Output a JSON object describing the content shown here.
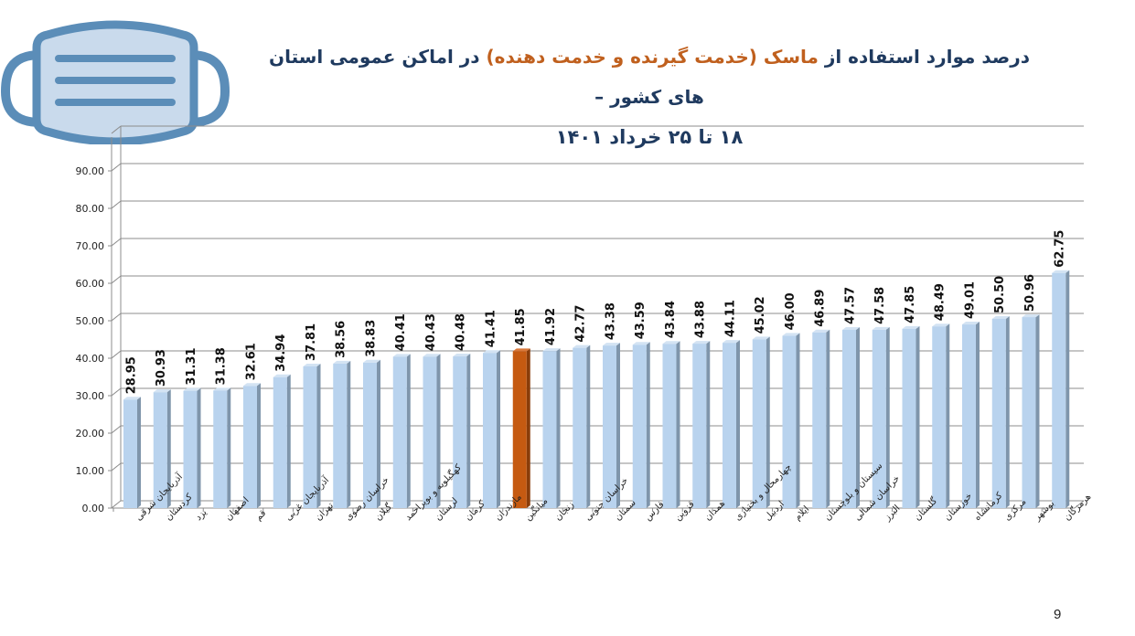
{
  "slide": {
    "title_part1": "درصد موارد استفاده از ",
    "title_part2": "ماسک (خدمت گیرنده و خدمت دهنده)",
    "title_part3": " در اماکن عمومی استان های کشور –",
    "title_line2": "۱۸ تا ۲۵ خرداد ۱۴۰۱",
    "page_number": "9",
    "icon": "face-mask-icon",
    "colors": {
      "title": "#1F3A5F",
      "title_accent": "#C0601E",
      "bar": "#B9D3EE",
      "bar_side": "#7F95AB",
      "highlight_bar": "#C55A11",
      "highlight_side": "#8A3D0A",
      "mask_stroke": "#5B8DB8",
      "mask_fill": "#C9DAEC"
    }
  },
  "chart_data": {
    "type": "bar",
    "title": "درصد موارد استفاده از ماسک (خدمت گیرنده و خدمت دهنده) در اماکن عمومی استان های کشور – ۱۸ تا ۲۵ خرداد ۱۴۰۱",
    "xlabel": "",
    "ylabel": "",
    "ylim": [
      0,
      100
    ],
    "yticks": [
      "0.00",
      "10.00",
      "20.00",
      "30.00",
      "40.00",
      "50.00",
      "60.00",
      "70.00",
      "80.00",
      "90.00"
    ],
    "grid": true,
    "legend": "none",
    "style": "3d-column",
    "highlighted_category": "میانگین",
    "categories": [
      "آذربایجان شرقی",
      "کردستان",
      "یزد",
      "اصفهان",
      "قم",
      "آذربایجان غربی",
      "تهران",
      "خراسان رضوی",
      "گیلان",
      "کهگیلویه و بویراحمد",
      "لرستان",
      "کرمان",
      "مازندران",
      "میانگین",
      "زنجان",
      "خراسان جنوبی",
      "سمنان",
      "فارس",
      "قزوین",
      "همدان",
      "چهارمحال و بختیاری",
      "اردبیل",
      "ایلام",
      "سیستان و بلوچستان",
      "خراسان شمالی",
      "البرز",
      "گلستان",
      "خوزستان",
      "کرمانشاه",
      "مرکزی",
      "بوشهر",
      "هرمزگان"
    ],
    "values": [
      28.95,
      30.93,
      31.31,
      31.38,
      32.61,
      34.94,
      37.81,
      38.56,
      38.83,
      40.41,
      40.43,
      40.48,
      41.41,
      41.85,
      41.92,
      42.77,
      43.38,
      43.59,
      43.84,
      43.88,
      44.11,
      45.02,
      46.0,
      46.89,
      47.57,
      47.58,
      47.85,
      48.49,
      49.01,
      50.5,
      50.96,
      62.75
    ],
    "value_labels": [
      "28.95",
      "30.93",
      "31.31",
      "31.38",
      "32.61",
      "34.94",
      "37.81",
      "38.56",
      "38.83",
      "40.41",
      "40.43",
      "40.48",
      "41.41",
      "41.85",
      "41.92",
      "42.77",
      "43.38",
      "43.59",
      "43.84",
      "43.88",
      "44.11",
      "45.02",
      "46.00",
      "46.89",
      "47.57",
      "47.58",
      "47.85",
      "48.49",
      "49.01",
      "50.50",
      "50.96",
      "62.75"
    ]
  }
}
